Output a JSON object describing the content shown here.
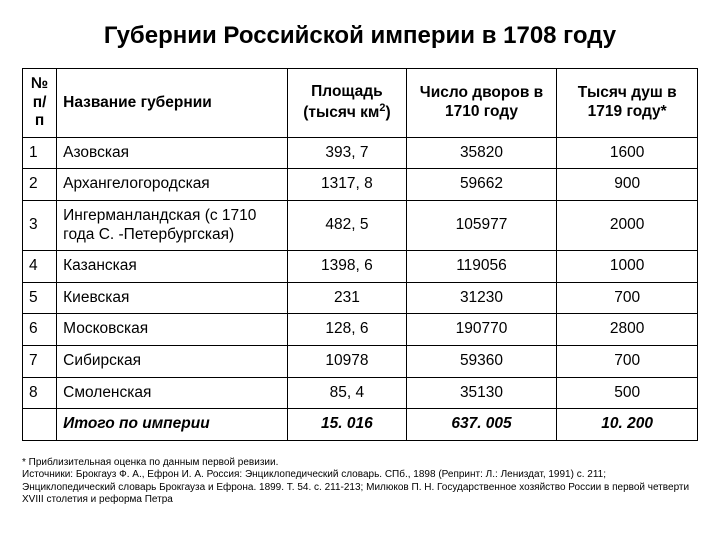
{
  "title": "Губернии Российской империи в 1708 году",
  "table": {
    "columns": {
      "num": "№ п/п",
      "name": "Название губернии",
      "area_html": "Площадь (тысяч км<sup>2</sup>)",
      "households": "Число дворов в 1710 году",
      "souls": "Тысяч душ в 1719 году*"
    },
    "rows": [
      {
        "num": "1",
        "name": "Азовская",
        "area": "393, 7",
        "households": "35820",
        "souls": "1600"
      },
      {
        "num": "2",
        "name": "Архангелогородская",
        "area": "1317, 8",
        "households": "59662",
        "souls": "900"
      },
      {
        "num": "3",
        "name": "Ингерманландская (с 1710 года С. -Петербургская)",
        "area": "482, 5",
        "households": "105977",
        "souls": "2000"
      },
      {
        "num": "4",
        "name": "Казанская",
        "area": "1398, 6",
        "households": "119056",
        "souls": "1000"
      },
      {
        "num": "5",
        "name": "Киевская",
        "area": "231",
        "households": "31230",
        "souls": "700"
      },
      {
        "num": "6",
        "name": "Московская",
        "area": "128, 6",
        "households": "190770",
        "souls": "2800"
      },
      {
        "num": "7",
        "name": "Сибирская",
        "area": "10978",
        "households": "59360",
        "souls": "700"
      },
      {
        "num": "8",
        "name": "Смоленская",
        "area": "85, 4",
        "households": "35130",
        "souls": "500"
      }
    ],
    "total": {
      "label": "Итого по империи",
      "area": "15. 016",
      "households": "637. 005",
      "souls": "10. 200"
    }
  },
  "footnote": {
    "line1": "* Приблизительная оценка по данным первой ревизии.",
    "line2": "Источники: Брокгауз Ф. А., Ефрон И. А. Россия: Энциклопедический словарь. СПб., 1898 (Репринт: Л.: Лениздат, 1991) с. 211; Энциклопедический словарь Брокгауза и Ефрона. 1899. Т. 54. с. 211-213; Милюков П. Н. Государственное хозяйство России в первой четверти XVIII столетия и реформа Петра"
  }
}
